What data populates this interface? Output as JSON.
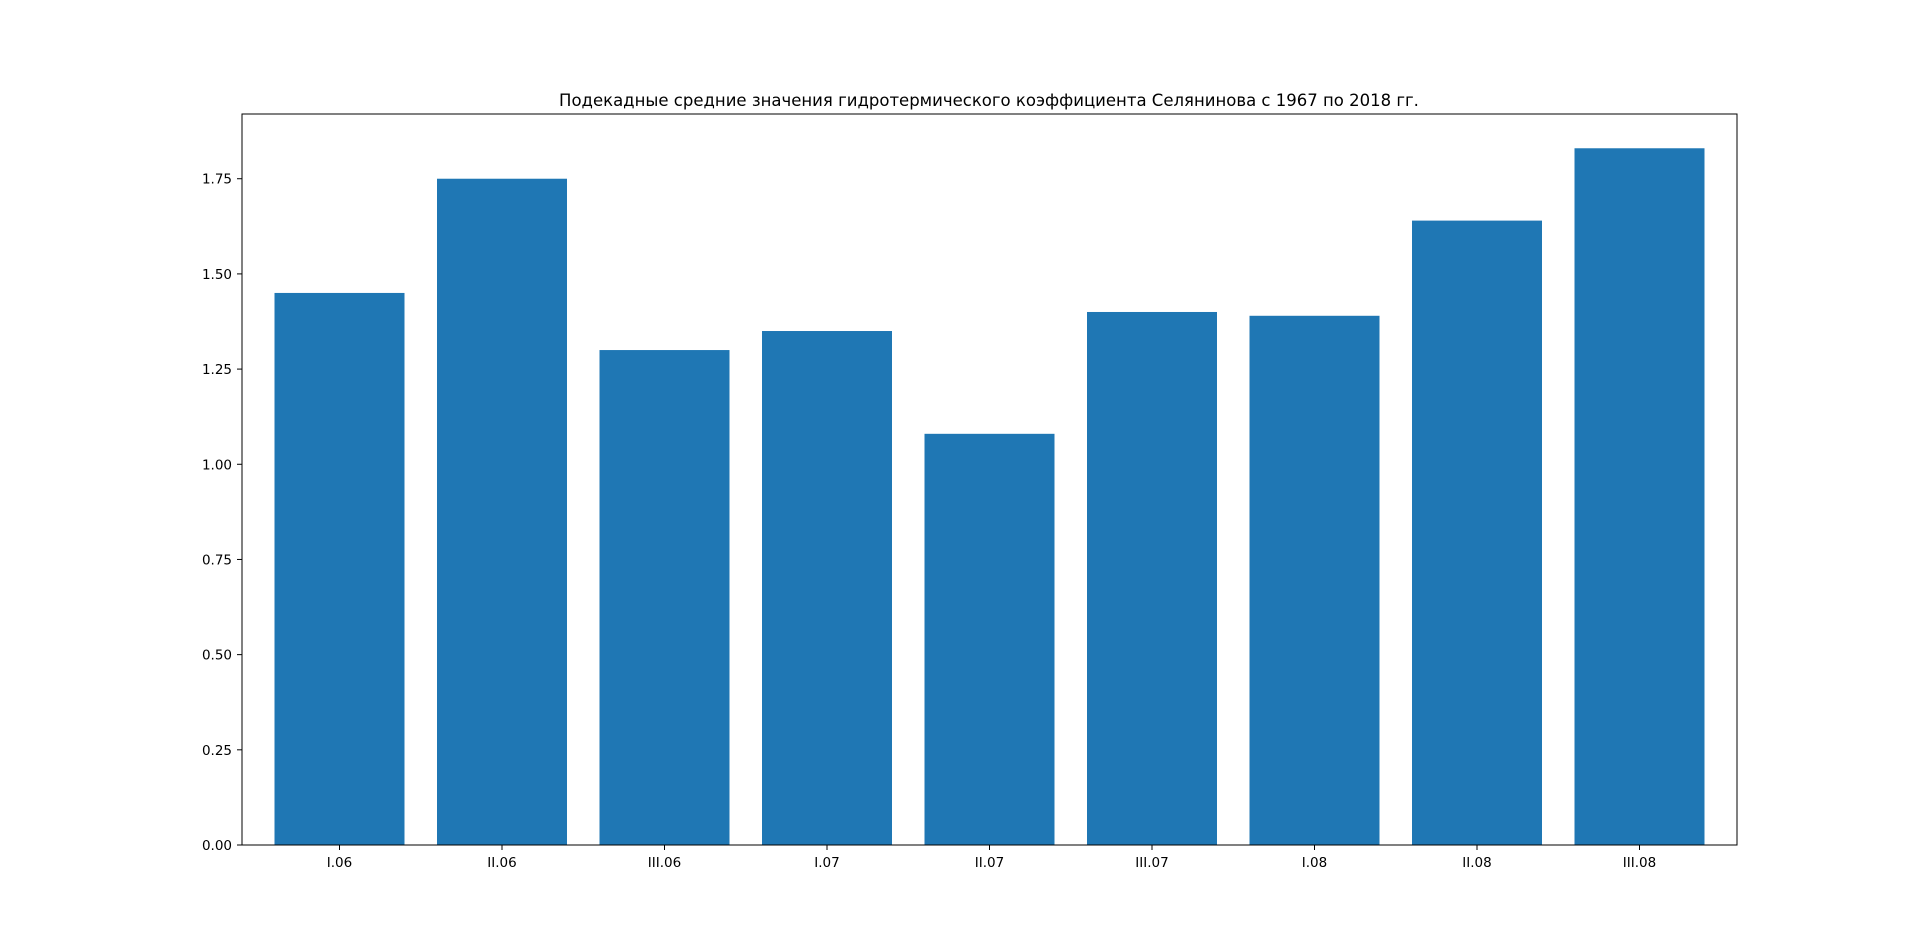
{
  "chart_data": {
    "type": "bar",
    "title": "Подекадные средние значения гидротермического коэффициента Селянинова с 1967 по 2018 гг.",
    "xlabel": "",
    "ylabel": "",
    "categories": [
      "I.06",
      "II.06",
      "III.06",
      "I.07",
      "II.07",
      "III.07",
      "I.08",
      "II.08",
      "III.08"
    ],
    "values": [
      1.45,
      1.75,
      1.3,
      1.35,
      1.08,
      1.4,
      1.39,
      1.64,
      1.83
    ],
    "ylim": [
      0,
      1.92
    ],
    "yticks": [
      "0.00",
      "0.25",
      "0.50",
      "0.75",
      "1.00",
      "1.25",
      "1.50",
      "1.75"
    ],
    "grid": false,
    "bar_color": "#1f77b4"
  }
}
